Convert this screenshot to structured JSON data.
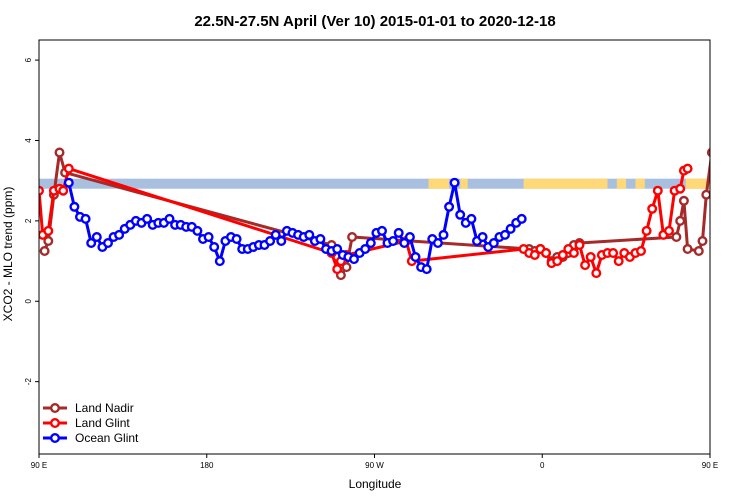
{
  "chart_data": {
    "type": "line",
    "title": "22.5N-27.5N April (Ver 10)   2015-01-01 to 2020-12-18",
    "xlabel": "Longitude",
    "ylabel": "XCO2 - MLO trend (ppm)",
    "xlim": [
      90,
      450
    ],
    "ylim": [
      -3.8,
      6.5
    ],
    "x_ticks": [
      {
        "value": 90,
        "label": "90 E"
      },
      {
        "value": 180,
        "label": "180"
      },
      {
        "value": 270,
        "label": "90 W"
      },
      {
        "value": 360,
        "label": "0"
      },
      {
        "value": 450,
        "label": "90 E"
      },
      {
        "value": 540,
        "label": "180"
      }
    ],
    "y_ticks": [
      {
        "value": -2,
        "label": "-2"
      },
      {
        "value": 0,
        "label": "0"
      },
      {
        "value": 2,
        "label": "2"
      },
      {
        "value": 4,
        "label": "4"
      },
      {
        "value": 6,
        "label": "6"
      }
    ],
    "legend_position": "bottom-left",
    "map_band": {
      "y_range": [
        2.8,
        3.05
      ],
      "ocean_color": "#a8bfdf",
      "land_color": "#ffd878",
      "land_segments": [
        [
          299,
          310
        ],
        [
          316,
          320
        ],
        [
          350,
          395
        ],
        [
          400,
          405
        ],
        [
          410,
          415
        ],
        [
          437,
          455
        ]
      ]
    },
    "series": [
      {
        "name": "Land Nadir",
        "color": "#a52a2a",
        "points": [
          [
            93,
            1.25
          ],
          [
            95,
            1.5
          ],
          [
            98,
            2.65
          ],
          [
            101,
            3.7
          ],
          [
            104,
            3.2
          ],
          [
            247,
            1.4
          ],
          [
            250,
            1.1
          ],
          [
            252,
            0.65
          ],
          [
            255,
            0.85
          ],
          [
            258,
            1.6
          ],
          [
            353,
            1.3
          ],
          [
            356,
            1.25
          ],
          [
            359,
            1.3
          ],
          [
            362,
            1.2
          ],
          [
            365,
            1.0
          ],
          [
            368,
            1.1
          ],
          [
            371,
            1.1
          ],
          [
            374,
            1.2
          ],
          [
            377,
            1.4
          ],
          [
            380,
            1.45
          ],
          [
            432,
            1.6
          ],
          [
            434,
            2.0
          ],
          [
            436,
            2.5
          ],
          [
            438,
            1.3
          ],
          [
            444,
            1.25
          ],
          [
            446,
            1.5
          ],
          [
            448,
            2.65
          ],
          [
            451,
            3.7
          ],
          [
            454,
            3.2
          ]
        ]
      },
      {
        "name": "Land Glint",
        "color": "#ff0000",
        "points": [
          [
            90,
            2.75
          ],
          [
            92,
            1.65
          ],
          [
            95,
            1.75
          ],
          [
            98,
            2.75
          ],
          [
            101,
            2.8
          ],
          [
            103,
            2.75
          ],
          [
            106,
            3.3
          ],
          [
            247,
            1.2
          ],
          [
            250,
            0.8
          ],
          [
            252,
            1.0
          ],
          [
            255,
            1.15
          ],
          [
            287,
            1.5
          ],
          [
            290,
            1.0
          ],
          [
            350,
            1.3
          ],
          [
            353,
            1.2
          ],
          [
            356,
            1.15
          ],
          [
            359,
            1.3
          ],
          [
            362,
            1.2
          ],
          [
            365,
            0.95
          ],
          [
            368,
            1.0
          ],
          [
            371,
            1.15
          ],
          [
            374,
            1.3
          ],
          [
            377,
            1.2
          ],
          [
            380,
            1.4
          ],
          [
            383,
            0.9
          ],
          [
            386,
            1.1
          ],
          [
            389,
            0.7
          ],
          [
            392,
            1.15
          ],
          [
            395,
            1.2
          ],
          [
            398,
            1.2
          ],
          [
            401,
            1.0
          ],
          [
            404,
            1.2
          ],
          [
            407,
            1.1
          ],
          [
            410,
            1.2
          ],
          [
            413,
            1.25
          ],
          [
            416,
            1.75
          ],
          [
            419,
            2.3
          ],
          [
            422,
            2.75
          ],
          [
            425,
            1.65
          ],
          [
            428,
            1.75
          ],
          [
            431,
            2.75
          ],
          [
            434,
            2.8
          ],
          [
            436,
            3.25
          ],
          [
            438,
            3.3
          ]
        ]
      },
      {
        "name": "Ocean Glint",
        "color": "#0000ff",
        "points": [
          [
            106,
            2.95
          ],
          [
            109,
            2.35
          ],
          [
            112,
            2.1
          ],
          [
            115,
            2.05
          ],
          [
            118,
            1.45
          ],
          [
            121,
            1.6
          ],
          [
            124,
            1.35
          ],
          [
            127,
            1.45
          ],
          [
            130,
            1.6
          ],
          [
            133,
            1.65
          ],
          [
            136,
            1.8
          ],
          [
            139,
            1.9
          ],
          [
            142,
            2.0
          ],
          [
            145,
            1.95
          ],
          [
            148,
            2.05
          ],
          [
            151,
            1.9
          ],
          [
            154,
            1.95
          ],
          [
            157,
            1.95
          ],
          [
            160,
            2.05
          ],
          [
            163,
            1.9
          ],
          [
            166,
            1.9
          ],
          [
            169,
            1.85
          ],
          [
            172,
            1.85
          ],
          [
            175,
            1.75
          ],
          [
            178,
            1.55
          ],
          [
            181,
            1.6
          ],
          [
            184,
            1.35
          ],
          [
            187,
            1.0
          ],
          [
            190,
            1.5
          ],
          [
            193,
            1.6
          ],
          [
            196,
            1.55
          ],
          [
            199,
            1.3
          ],
          [
            202,
            1.3
          ],
          [
            205,
            1.35
          ],
          [
            208,
            1.4
          ],
          [
            211,
            1.4
          ],
          [
            214,
            1.5
          ],
          [
            217,
            1.65
          ],
          [
            220,
            1.5
          ],
          [
            223,
            1.75
          ],
          [
            226,
            1.7
          ],
          [
            229,
            1.65
          ],
          [
            232,
            1.6
          ],
          [
            235,
            1.65
          ],
          [
            238,
            1.5
          ],
          [
            241,
            1.55
          ],
          [
            244,
            1.3
          ],
          [
            247,
            1.25
          ],
          [
            250,
            1.3
          ],
          [
            253,
            1.15
          ],
          [
            256,
            1.1
          ],
          [
            259,
            1.05
          ],
          [
            262,
            1.2
          ],
          [
            265,
            1.3
          ],
          [
            268,
            1.45
          ],
          [
            271,
            1.7
          ],
          [
            274,
            1.75
          ],
          [
            277,
            1.45
          ],
          [
            280,
            1.5
          ],
          [
            283,
            1.7
          ],
          [
            286,
            1.45
          ],
          [
            289,
            1.6
          ],
          [
            292,
            1.1
          ],
          [
            295,
            0.85
          ],
          [
            298,
            0.8
          ],
          [
            301,
            1.55
          ],
          [
            304,
            1.45
          ],
          [
            307,
            1.65
          ],
          [
            310,
            2.35
          ],
          [
            313,
            2.95
          ],
          [
            316,
            2.15
          ],
          [
            319,
            1.95
          ],
          [
            322,
            2.05
          ],
          [
            325,
            1.5
          ],
          [
            328,
            1.6
          ],
          [
            331,
            1.35
          ],
          [
            334,
            1.45
          ],
          [
            337,
            1.6
          ],
          [
            340,
            1.65
          ],
          [
            343,
            1.8
          ],
          [
            346,
            1.95
          ],
          [
            349,
            2.05
          ]
        ]
      }
    ]
  }
}
